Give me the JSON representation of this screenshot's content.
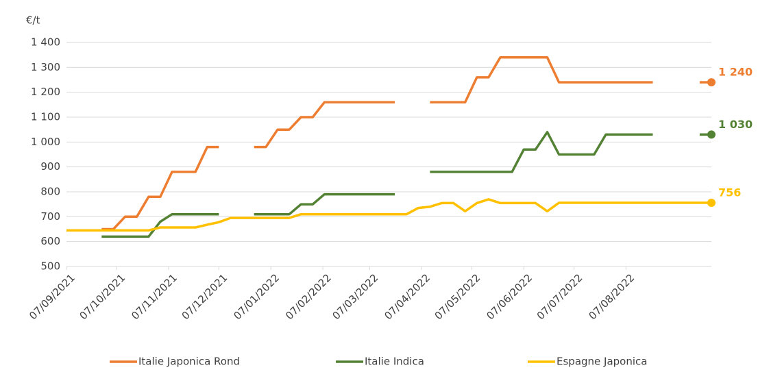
{
  "chart_data": {
    "type": "line",
    "y_label": "€/t",
    "x": [
      "07/09/2021",
      "14/09/2021",
      "21/09/2021",
      "28/09/2021",
      "05/10/2021",
      "12/10/2021",
      "19/10/2021",
      "26/10/2021",
      "02/11/2021",
      "09/11/2021",
      "16/11/2021",
      "23/11/2021",
      "30/11/2021",
      "07/12/2021",
      "14/12/2021",
      "21/12/2021",
      "28/12/2021",
      "04/01/2022",
      "11/01/2022",
      "18/01/2022",
      "25/01/2022",
      "01/02/2022",
      "08/02/2022",
      "15/02/2022",
      "22/02/2022",
      "01/03/2022",
      "08/03/2022",
      "15/03/2022",
      "22/03/2022",
      "29/03/2022",
      "05/04/2022",
      "12/04/2022",
      "19/04/2022",
      "26/04/2022",
      "03/05/2022",
      "10/05/2022",
      "17/05/2022",
      "24/05/2022",
      "31/05/2022",
      "07/06/2022",
      "14/06/2022",
      "21/06/2022",
      "28/06/2022",
      "05/07/2022",
      "12/07/2022",
      "19/07/2022",
      "26/07/2022",
      "02/08/2022",
      "09/08/2022",
      "16/08/2022",
      "23/08/2022",
      "30/08/2022",
      "06/09/2022",
      "13/09/2022",
      "20/09/2022",
      "27/09/2022"
    ],
    "xlim": [
      "07/09/2021",
      "27/09/2022"
    ],
    "xticks": [
      "07/09/2021",
      "07/10/2021",
      "07/11/2021",
      "07/12/2021",
      "07/01/2022",
      "07/02/2022",
      "07/03/2022",
      "07/04/2022",
      "07/05/2022",
      "07/06/2022",
      "07/07/2022",
      "07/08/2022"
    ],
    "ylim": [
      500,
      1400
    ],
    "yticks": [
      500,
      600,
      700,
      800,
      900,
      {
        "value": 1000,
        "label": "1 000"
      },
      {
        "value": 1100,
        "label": "1 100"
      },
      {
        "value": 1200,
        "label": "1 200"
      },
      {
        "value": 1300,
        "label": "1 300"
      },
      {
        "value": 1400,
        "label": "1 400"
      }
    ],
    "grid": true,
    "legend": "bottom",
    "series": [
      {
        "name": "Italie Japonica Rond",
        "color": "#ed7d31",
        "values": [
          null,
          null,
          null,
          650,
          650,
          700,
          700,
          780,
          780,
          880,
          880,
          880,
          980,
          980,
          null,
          null,
          980,
          980,
          1050,
          1050,
          1100,
          1100,
          1160,
          1160,
          1160,
          1160,
          1160,
          1160,
          1160,
          null,
          null,
          1160,
          1160,
          1160,
          1160,
          1260,
          1260,
          1340,
          1340,
          1340,
          1340,
          1340,
          1240,
          1240,
          1240,
          1240,
          1240,
          1240,
          1240,
          1240,
          1240,
          null,
          null,
          null,
          1240,
          1240
        ],
        "value_labels": [
          null,
          null,
          null,
          null,
          null,
          null,
          null,
          null,
          null,
          null,
          null,
          null,
          null,
          null,
          null,
          null,
          null,
          null,
          null,
          null,
          null,
          null,
          null,
          null,
          null,
          null,
          null,
          null,
          null,
          null,
          null,
          null,
          null,
          null,
          null,
          null,
          null,
          null,
          null,
          null,
          null,
          null,
          null,
          null,
          null,
          null,
          null,
          null,
          null,
          null,
          null,
          null,
          null,
          null,
          null,
          "1 240"
        ]
      },
      {
        "name": "Italie Indica",
        "color": "#548235",
        "values": [
          null,
          null,
          null,
          620,
          620,
          620,
          620,
          620,
          680,
          710,
          710,
          710,
          710,
          710,
          null,
          null,
          710,
          710,
          710,
          710,
          750,
          750,
          790,
          790,
          790,
          790,
          790,
          790,
          790,
          null,
          null,
          880,
          880,
          880,
          880,
          880,
          880,
          880,
          880,
          970,
          970,
          1040,
          950,
          950,
          950,
          950,
          1030,
          1030,
          1030,
          1030,
          1030,
          null,
          null,
          null,
          1030,
          1030
        ],
        "value_labels": [
          null,
          null,
          null,
          null,
          null,
          null,
          null,
          null,
          null,
          null,
          null,
          null,
          null,
          null,
          null,
          null,
          null,
          null,
          null,
          null,
          null,
          null,
          null,
          null,
          null,
          null,
          null,
          null,
          null,
          null,
          null,
          null,
          null,
          null,
          null,
          null,
          null,
          null,
          null,
          null,
          null,
          null,
          null,
          null,
          null,
          null,
          null,
          null,
          null,
          null,
          null,
          null,
          null,
          null,
          null,
          "1 030"
        ]
      },
      {
        "name": "Espagne Japonica",
        "color": "#ffc000",
        "values": [
          645,
          645,
          645,
          645,
          645,
          645,
          645,
          645,
          657,
          657,
          657,
          657,
          668,
          678,
          695,
          695,
          695,
          695,
          695,
          695,
          710,
          710,
          710,
          710,
          710,
          710,
          710,
          710,
          710,
          710,
          735,
          740,
          755,
          755,
          722,
          755,
          770,
          755,
          755,
          755,
          755,
          722,
          756,
          756,
          756,
          756,
          756,
          756,
          756,
          756,
          756,
          756,
          756,
          756,
          756,
          756
        ],
        "value_labels": [
          null,
          null,
          null,
          null,
          null,
          null,
          null,
          null,
          null,
          null,
          null,
          null,
          null,
          null,
          null,
          null,
          null,
          null,
          null,
          null,
          null,
          null,
          null,
          null,
          null,
          null,
          null,
          null,
          null,
          null,
          null,
          null,
          null,
          null,
          null,
          null,
          null,
          null,
          null,
          null,
          null,
          null,
          null,
          null,
          null,
          null,
          null,
          null,
          null,
          null,
          null,
          null,
          null,
          null,
          null,
          "756"
        ]
      }
    ]
  }
}
